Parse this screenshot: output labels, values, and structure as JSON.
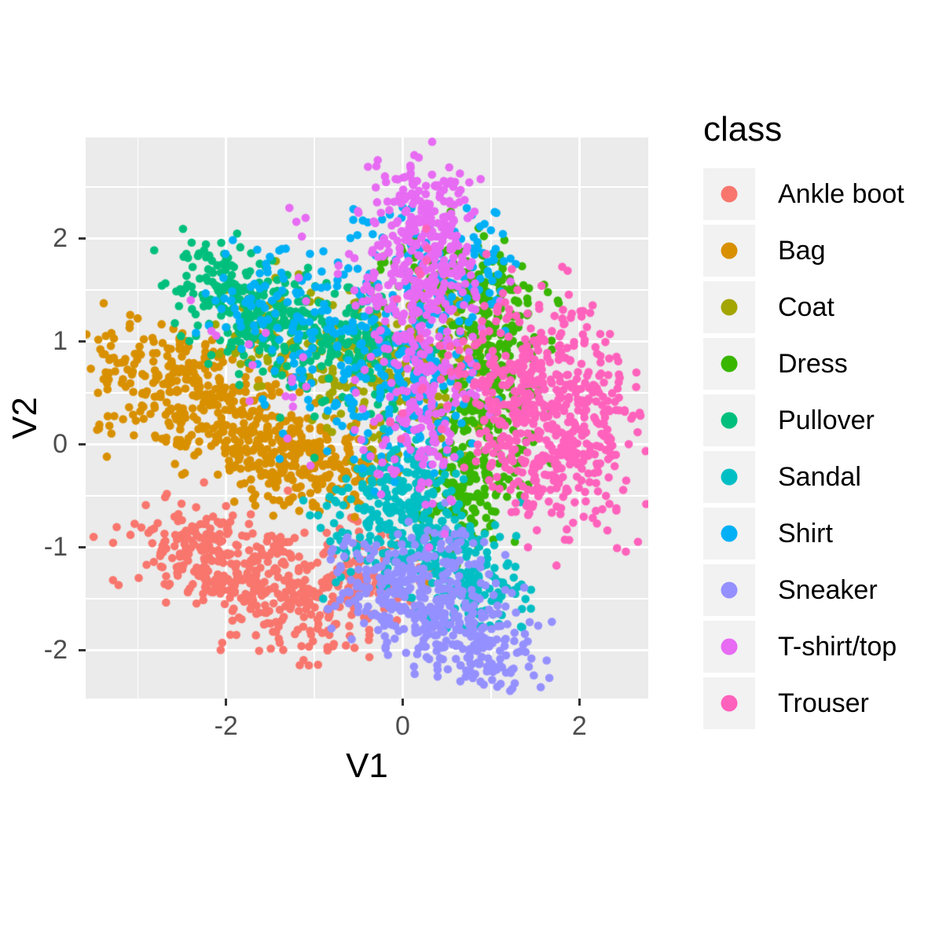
{
  "figure": {
    "background": "#FFFFFF",
    "panel_background": "#EBEBEB",
    "grid_color": "#FFFFFF",
    "tick_mark_color": "#333333",
    "tick_label_color": "#4D4D4D",
    "text_color": "#000000",
    "legend_key_background": "#F2F2F2"
  },
  "chart_data": {
    "type": "scatter",
    "title": "",
    "xlabel": "V1",
    "ylabel": "V2",
    "xlim": [
      -3.59,
      2.78
    ],
    "ylim": [
      -2.47,
      2.98
    ],
    "x_ticks": {
      "values": [
        -2,
        0,
        2
      ],
      "labels": [
        "-2",
        "0",
        "2"
      ]
    },
    "y_ticks": {
      "values": [
        2,
        1,
        0,
        -1,
        -2
      ],
      "labels": [
        "2",
        "1",
        "0",
        "-1",
        "-2"
      ]
    },
    "x_minor": [
      -3,
      -1,
      1
    ],
    "y_minor": [
      2.5,
      1.5,
      0.5,
      -0.5,
      -1.5
    ],
    "grid": true,
    "point_radius_px": 5.3,
    "legend": {
      "title": "class",
      "position": "right",
      "entries": [
        {
          "label": "Ankle boot",
          "color": "#F8766D"
        },
        {
          "label": "Bag",
          "color": "#D89000"
        },
        {
          "label": "Coat",
          "color": "#A3A500"
        },
        {
          "label": "Dress",
          "color": "#39B600"
        },
        {
          "label": "Pullover",
          "color": "#00BF7D"
        },
        {
          "label": "Sandal",
          "color": "#00BFC4"
        },
        {
          "label": "Shirt",
          "color": "#00B0F6"
        },
        {
          "label": "Sneaker",
          "color": "#9590FF"
        },
        {
          "label": "T-shirt/top",
          "color": "#E76BF3"
        },
        {
          "label": "Trouser",
          "color": "#FF62BC"
        }
      ]
    },
    "series": [
      {
        "name": "Ankle boot",
        "color": "#F8766D",
        "blobs": [
          [
            -2.35,
            -1.05,
            0.4,
            0.22,
            -12,
            120
          ],
          [
            -1.7,
            -1.3,
            0.5,
            0.3,
            -12,
            180
          ],
          [
            -1.05,
            -1.5,
            0.42,
            0.3,
            0,
            120
          ],
          [
            -0.45,
            -1.25,
            0.38,
            0.28,
            0,
            80
          ]
        ],
        "outliers": [
          [
            -3.5,
            -0.9
          ],
          [
            -3.28,
            -1.32
          ],
          [
            -2.7,
            -0.95
          ],
          [
            -2.55,
            -1.2
          ],
          [
            -2.25,
            -0.37
          ],
          [
            -2.0,
            -0.6
          ],
          [
            -1.3,
            -0.45
          ]
        ]
      },
      {
        "name": "Bag",
        "color": "#D89000",
        "blobs": [
          [
            -2.75,
            0.55,
            0.42,
            0.3,
            -25,
            130
          ],
          [
            -2.1,
            0.3,
            0.5,
            0.3,
            -20,
            160
          ],
          [
            -1.45,
            0.0,
            0.5,
            0.26,
            -15,
            170
          ],
          [
            -0.8,
            -0.25,
            0.4,
            0.22,
            0,
            120
          ],
          [
            -2.0,
            0.78,
            0.5,
            0.18,
            0,
            50
          ]
        ],
        "outliers": [
          [
            -3.45,
            0.5
          ],
          [
            -3.35,
            -0.12
          ],
          [
            -3.15,
            0.8
          ],
          [
            -2.98,
            0.95
          ],
          [
            0.15,
            -1.1
          ],
          [
            0.3,
            -1.35
          ],
          [
            -0.25,
            -0.8
          ]
        ]
      },
      {
        "name": "Coat",
        "color": "#A3A500",
        "blobs": [
          [
            -0.5,
            0.85,
            0.5,
            0.3,
            0,
            140
          ],
          [
            0.1,
            0.55,
            0.38,
            0.35,
            0,
            100
          ],
          [
            -1.35,
            1.2,
            0.35,
            0.25,
            0,
            50
          ],
          [
            0.45,
            1.2,
            0.3,
            0.3,
            0,
            40
          ]
        ],
        "outliers": [
          [
            -2.0,
            1.5
          ],
          [
            -1.9,
            1.05
          ]
        ]
      },
      {
        "name": "Dress",
        "color": "#39B600",
        "blobs": [
          [
            0.95,
            0.55,
            0.3,
            0.6,
            0,
            200
          ],
          [
            1.05,
            1.3,
            0.3,
            0.35,
            0,
            110
          ],
          [
            0.7,
            -0.25,
            0.3,
            0.3,
            0,
            90
          ],
          [
            0.35,
            1.75,
            0.3,
            0.25,
            0,
            40
          ],
          [
            0.5,
            -0.75,
            0.25,
            0.2,
            0,
            30
          ]
        ],
        "outliers": [
          [
            0.15,
            2.0
          ],
          [
            1.6,
            1.55
          ]
        ]
      },
      {
        "name": "Pullover",
        "color": "#00BF7D",
        "blobs": [
          [
            -2.1,
            1.55,
            0.32,
            0.26,
            -15,
            90
          ],
          [
            -1.5,
            1.25,
            0.45,
            0.3,
            -10,
            140
          ],
          [
            -0.85,
            1.0,
            0.45,
            0.32,
            0,
            120
          ],
          [
            -0.2,
            0.75,
            0.35,
            0.3,
            0,
            60
          ]
        ],
        "outliers": [
          [
            -2.45,
            1.85
          ],
          [
            0.75,
            0.5
          ],
          [
            -1.0,
            -0.13
          ],
          [
            0.6,
            -0.6
          ]
        ]
      },
      {
        "name": "Sandal",
        "color": "#00BFC4",
        "blobs": [
          [
            -0.2,
            -0.7,
            0.38,
            0.3,
            0,
            130
          ],
          [
            0.3,
            -1.0,
            0.4,
            0.32,
            -20,
            150
          ],
          [
            0.9,
            -1.4,
            0.3,
            0.22,
            -25,
            80
          ],
          [
            0.05,
            -0.32,
            0.3,
            0.2,
            0,
            60
          ]
        ],
        "outliers": [
          [
            1.35,
            -1.6
          ],
          [
            -0.9,
            -1.5
          ],
          [
            1.1,
            -0.9
          ],
          [
            -1.05,
            -0.69
          ]
        ]
      },
      {
        "name": "Shirt",
        "color": "#00B0F6",
        "blobs": [
          [
            -1.55,
            1.35,
            0.4,
            0.28,
            0,
            65
          ],
          [
            -0.7,
            1.05,
            0.5,
            0.4,
            0,
            105
          ],
          [
            0.25,
            1.0,
            0.35,
            0.55,
            0,
            85
          ],
          [
            -0.3,
            1.95,
            0.45,
            0.3,
            0,
            30
          ],
          [
            -0.15,
            0.3,
            0.5,
            0.4,
            0,
            70
          ],
          [
            0.95,
            1.8,
            0.22,
            0.28,
            0,
            45
          ]
        ],
        "outliers": [
          [
            -0.56,
            2.18
          ],
          [
            0.0,
            2.3
          ],
          [
            -1.05,
            1.85
          ],
          [
            0.85,
            1.9
          ]
        ]
      },
      {
        "name": "Sneaker",
        "color": "#9590FF",
        "blobs": [
          [
            0.3,
            -1.6,
            0.45,
            0.3,
            -15,
            180
          ],
          [
            0.85,
            -1.9,
            0.35,
            0.22,
            -20,
            120
          ],
          [
            -0.15,
            -1.35,
            0.35,
            0.25,
            0,
            100
          ],
          [
            0.5,
            -1.05,
            0.3,
            0.2,
            0,
            50
          ]
        ],
        "outliers": [
          [
            1.63,
            -2.1
          ],
          [
            1.66,
            -2.27
          ],
          [
            1.1,
            -2.15
          ],
          [
            -0.85,
            -1.6
          ]
        ]
      },
      {
        "name": "T-shirt/top",
        "color": "#E76BF3",
        "blobs": [
          [
            0.25,
            2.25,
            0.28,
            0.3,
            0,
            160
          ],
          [
            0.35,
            1.65,
            0.38,
            0.35,
            0,
            150
          ],
          [
            0.3,
            0.85,
            0.32,
            0.45,
            0,
            120
          ],
          [
            0.15,
            0.1,
            0.3,
            0.4,
            0,
            80
          ],
          [
            -0.5,
            1.9,
            0.5,
            0.4,
            0,
            25
          ],
          [
            -1.3,
            0.9,
            0.6,
            0.5,
            0,
            15
          ]
        ],
        "outliers": [
          [
            -2.4,
            1.4
          ],
          [
            -1.7,
            0.77
          ],
          [
            -1.1,
            2.2
          ],
          [
            -0.5,
            2.25
          ],
          [
            0.3,
            -1.0
          ]
        ]
      },
      {
        "name": "Trouser",
        "color": "#FF62BC",
        "blobs": [
          [
            1.75,
            0.05,
            0.42,
            0.5,
            0,
            320
          ],
          [
            1.55,
            0.85,
            0.32,
            0.35,
            0,
            90
          ],
          [
            1.2,
            0.3,
            0.28,
            0.55,
            0,
            90
          ],
          [
            0.5,
            0.9,
            0.3,
            0.55,
            0,
            30
          ],
          [
            2.2,
            0.45,
            0.2,
            0.3,
            0,
            40
          ]
        ],
        "outliers": [
          [
            2.15,
            1.35
          ],
          [
            1.3,
            1.5
          ],
          [
            0.0,
            0.3
          ],
          [
            2.42,
            0.85
          ]
        ]
      }
    ]
  }
}
